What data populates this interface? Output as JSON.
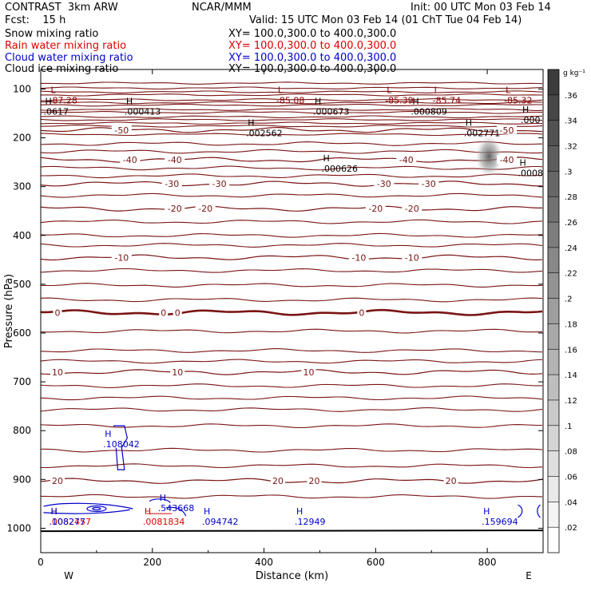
{
  "header": {
    "line1_left": "CONTRAST  3km ARW",
    "line1_center": "NCAR/MMM",
    "line1_right": "Init: 00 UTC Mon 03 Feb 14",
    "line2_left": "Fcst:    15 h",
    "line2_right": "Valid: 15 UTC Mon 03 Feb 14 (01 ChT Tue 04 Feb 14)",
    "fields": [
      {
        "name": "Snow mixing ratio",
        "xy": "XY= 100.0,300.0 to 400.0,300.0",
        "color": "#000000"
      },
      {
        "name": "Rain water mixing ratio",
        "xy": "XY= 100.0,300.0 to 400.0,300.0",
        "color": "#e00000"
      },
      {
        "name": "Cloud water mixing ratio",
        "xy": "XY= 100.0,300.0 to 400.0,300.0",
        "color": "#0000cc"
      },
      {
        "name": "Cloud ice mixing ratio",
        "xy": "XY= 100.0,300.0 to 400.0,300.0",
        "color": "#000000"
      }
    ]
  },
  "chart_data": {
    "type": "cross-section contour",
    "xlabel": "Distance (km)",
    "ylabel": "Pressure (hPa)",
    "xlim": [
      0,
      900
    ],
    "ylim": [
      1050,
      60
    ],
    "x_ticks": [
      "0",
      "200",
      "400",
      "600",
      "800"
    ],
    "y_ticks": [
      "100",
      "200",
      "300",
      "400",
      "500",
      "600",
      "700",
      "800",
      "900",
      "1000"
    ],
    "x_end_labels": {
      "left": "W",
      "right": "E"
    },
    "colorbar": {
      "unit": "g kg⁻¹",
      "ticks": [
        ".36",
        ".34",
        ".32",
        ".3",
        ".28",
        ".26",
        ".24",
        ".22",
        ".2",
        ".18",
        ".16",
        ".14",
        ".12",
        ".1",
        ".08",
        ".06",
        ".04",
        ".02"
      ]
    },
    "temperature_contours": [
      {
        "label": "-50",
        "p": 184,
        "lab_x": [
          145,
          835
        ]
      },
      {
        "label": "-40",
        "p": 245,
        "lab_x": [
          160,
          240,
          655,
          835
        ]
      },
      {
        "label": "-30",
        "p": 294,
        "lab_x": [
          235,
          320,
          615,
          695
        ]
      },
      {
        "label": "-20",
        "p": 345,
        "lab_x": [
          240,
          295,
          600,
          665
        ]
      },
      {
        "label": "-10",
        "p": 445,
        "lab_x": [
          145,
          570,
          665
        ]
      },
      {
        "label": "0",
        "p": 558,
        "lab_x": [
          30,
          220,
          245,
          575
        ]
      },
      {
        "label": "10",
        "p": 680,
        "lab_x": [
          30,
          245,
          480
        ]
      },
      {
        "label": "20",
        "p": 903,
        "lab_x": [
          30,
          425,
          490,
          735
        ]
      }
    ],
    "extrema": [
      {
        "kind": "L",
        "value": "-87.28",
        "x_km": 15,
        "p": 115,
        "color": "#8b0000"
      },
      {
        "kind": "L",
        "value": "-85.08",
        "x_km": 422,
        "p": 115,
        "color": "#8b0000"
      },
      {
        "kind": "L",
        "value": "-85.39",
        "x_km": 617,
        "p": 115,
        "color": "#8b0000"
      },
      {
        "kind": "L",
        "value": "-85.74",
        "x_km": 702,
        "p": 115,
        "color": "#8b0000"
      },
      {
        "kind": "L",
        "value": "-85.32",
        "x_km": 830,
        "p": 115,
        "color": "#8b0000"
      },
      {
        "kind": "H",
        "value": ".0617",
        "x_km": 5,
        "p": 138,
        "color": "#000000"
      },
      {
        "kind": "H",
        "value": ".000413",
        "x_km": 150,
        "p": 138,
        "color": "#000000"
      },
      {
        "kind": "H",
        "value": ".000673",
        "x_km": 488,
        "p": 138,
        "color": "#000000"
      },
      {
        "kind": "H",
        "value": ".000809",
        "x_km": 663,
        "p": 138,
        "color": "#000000"
      },
      {
        "kind": "H",
        "value": ".000",
        "x_km": 860,
        "p": 155,
        "color": "#000000"
      },
      {
        "kind": "H",
        "value": ".002562",
        "x_km": 368,
        "p": 182,
        "color": "#000000"
      },
      {
        "kind": "H",
        "value": ".002771",
        "x_km": 758,
        "p": 182,
        "color": "#000000"
      },
      {
        "kind": "H",
        "value": ".000626",
        "x_km": 503,
        "p": 255,
        "color": "#000000"
      },
      {
        "kind": "H",
        "value": ".0008",
        "x_km": 855,
        "p": 264,
        "color": "#000000"
      },
      {
        "kind": "H",
        "value": ".108042",
        "x_km": 112,
        "p": 819,
        "color": "#0000cc"
      },
      {
        "kind": "H",
        "value": ".0081834",
        "x_km": 183,
        "p": 978,
        "color": "#e00000"
      },
      {
        "kind": "H",
        "value": ".543668",
        "x_km": 210,
        "p": 950,
        "color": "#0000cc"
      },
      {
        "kind": "H",
        "value": ".094742",
        "x_km": 289,
        "p": 978,
        "color": "#0000cc"
      },
      {
        "kind": "H",
        "value": ".12949",
        "x_km": 455,
        "p": 978,
        "color": "#0000cc"
      },
      {
        "kind": "H",
        "value": ".159694",
        "x_km": 790,
        "p": 978,
        "color": "#0000cc"
      },
      {
        "kind": "H",
        "value": ".0082457",
        "x_km": 15,
        "p": 978,
        "color": "#e00000"
      },
      {
        "kind": "H",
        "value": ".108277",
        "x_km": 15,
        "p": 978,
        "color": "#0000cc"
      }
    ]
  }
}
